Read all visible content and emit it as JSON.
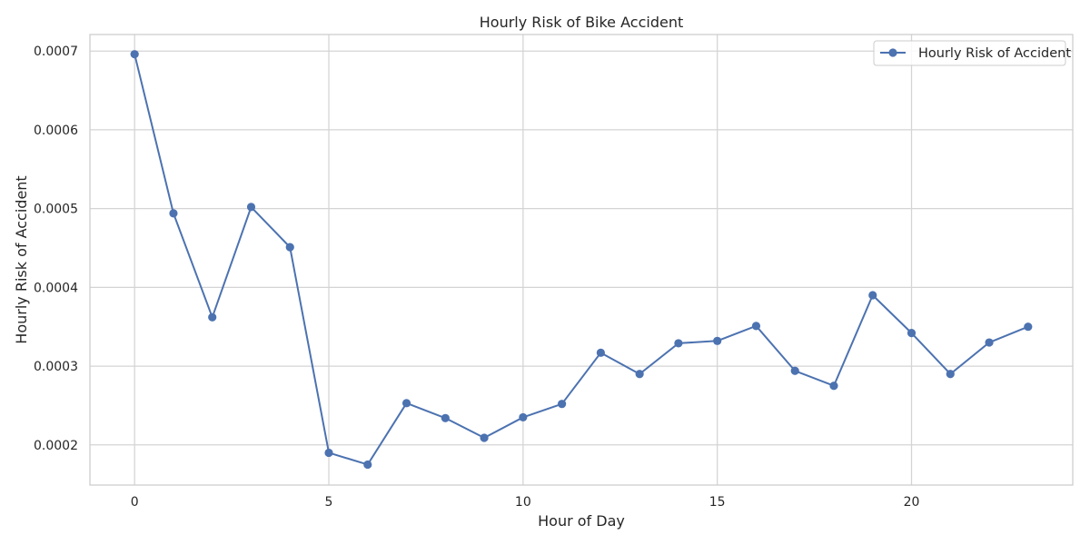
{
  "chart_data": {
    "type": "line",
    "title": "Hourly Risk of Bike Accident",
    "xlabel": "Hour of Day",
    "ylabel": "Hourly Risk of Accident",
    "xlim": [
      -1.15,
      24.15
    ],
    "ylim": [
      0.000149,
      0.000721
    ],
    "xticks": [
      0,
      5,
      10,
      15,
      20
    ],
    "xtick_labels": [
      "0",
      "5",
      "10",
      "15",
      "20"
    ],
    "yticks": [
      0.0002,
      0.0003,
      0.0004,
      0.0005,
      0.0006,
      0.0007
    ],
    "ytick_labels": [
      "0.0002",
      "0.0003",
      "0.0004",
      "0.0005",
      "0.0006",
      "0.0007"
    ],
    "grid": true,
    "legend_position": "top-right",
    "series": [
      {
        "name": "Hourly Risk of Accident",
        "color": "#4c72b0",
        "marker": "circle",
        "x": [
          0,
          1,
          2,
          3,
          4,
          5,
          6,
          7,
          8,
          9,
          10,
          11,
          12,
          13,
          14,
          15,
          16,
          17,
          18,
          19,
          20,
          21,
          22,
          23
        ],
        "values": [
          0.000696,
          0.000494,
          0.000362,
          0.000502,
          0.000451,
          0.00019,
          0.000175,
          0.000253,
          0.000234,
          0.000209,
          0.000235,
          0.000252,
          0.000317,
          0.00029,
          0.000329,
          0.000332,
          0.000351,
          0.000294,
          0.000275,
          0.00039,
          0.000342,
          0.00029,
          0.00033,
          0.00035
        ]
      }
    ]
  }
}
